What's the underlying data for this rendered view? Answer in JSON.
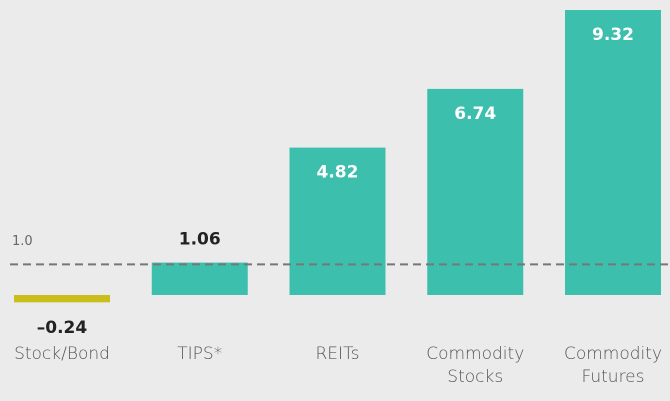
{
  "chart_data": {
    "type": "bar",
    "categories": [
      "Stock/Bond",
      "TIPS*",
      "REITs",
      "Commodity Stocks",
      "Commodity Futures"
    ],
    "values": [
      -0.24,
      1.06,
      4.82,
      6.74,
      9.32
    ],
    "value_labels": [
      "–0.24",
      "1.06",
      "4.82",
      "6.74",
      "9.32"
    ],
    "colors": [
      "#c9be1c",
      "#3dbfad",
      "#3dbfad",
      "#3dbfad",
      "#3dbfad"
    ],
    "reference_line": {
      "value": 1.0,
      "label": "1.0"
    }
  }
}
